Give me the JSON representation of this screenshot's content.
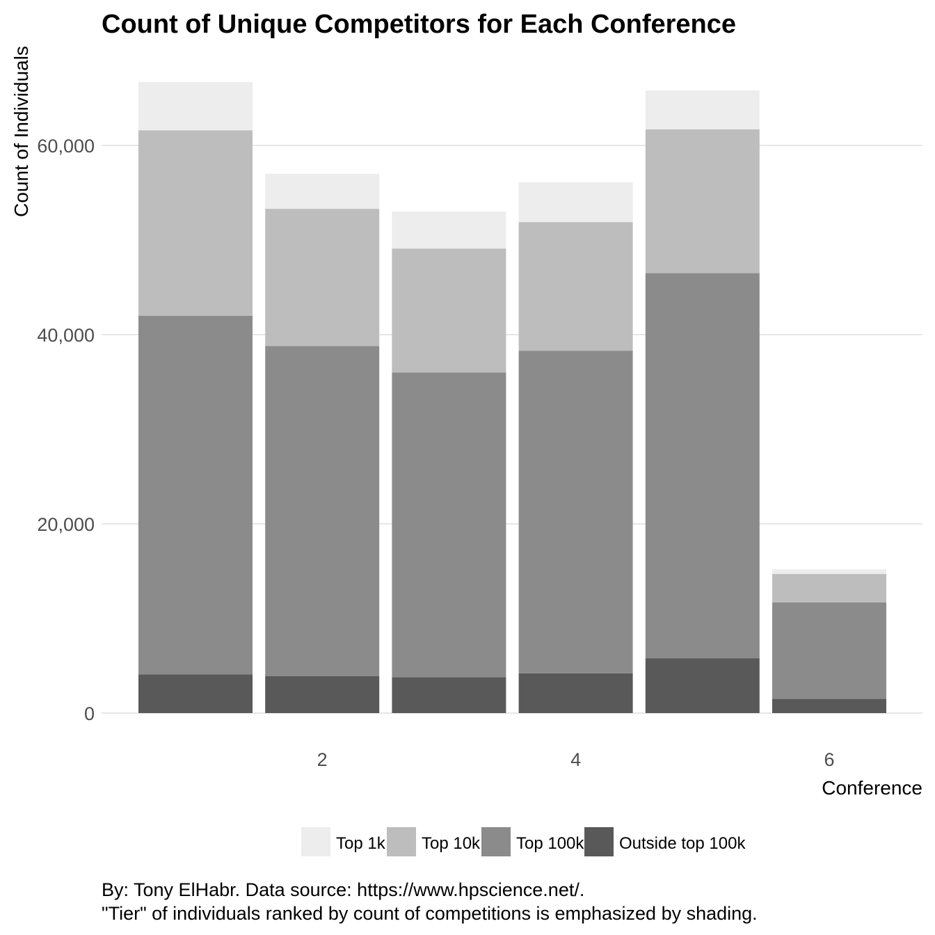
{
  "chart_data": {
    "type": "bar",
    "stacked": true,
    "title": "Count of Unique Competitors for Each Conference",
    "xlabel": "Conference",
    "ylabel": "Count of Individuals",
    "x": [
      1,
      2,
      3,
      4,
      5,
      6
    ],
    "x_ticks": [
      2,
      4,
      6
    ],
    "x_tick_labels": [
      "2",
      "4",
      "6"
    ],
    "ylim": [
      0,
      67000
    ],
    "y_ticks": [
      0,
      20000,
      40000,
      60000
    ],
    "y_tick_labels": [
      "0",
      "20,000",
      "40,000",
      "60,000"
    ],
    "grid": true,
    "legend_position": "bottom",
    "series": [
      {
        "name": "Outside top 100k",
        "color": "#595959",
        "values": [
          4100,
          3900,
          3800,
          4200,
          5800,
          1500
        ]
      },
      {
        "name": "Top 100k",
        "color": "#8b8b8b",
        "values": [
          37900,
          34900,
          32200,
          34100,
          40700,
          10200
        ]
      },
      {
        "name": "Top 10k",
        "color": "#bdbdbd",
        "values": [
          19600,
          14500,
          13100,
          13600,
          15200,
          3000
        ]
      },
      {
        "name": "Top 1k",
        "color": "#ededed",
        "values": [
          5100,
          3700,
          3900,
          4200,
          4100,
          500
        ]
      }
    ],
    "legend_order": [
      "Top 1k",
      "Top 10k",
      "Top 100k",
      "Outside top 100k"
    ],
    "caption_lines": [
      "By: Tony ElHabr. Data source: https://www.hpscience.net/.",
      "\"Tier\" of individuals ranked by count of competitions is emphasized by shading."
    ]
  }
}
